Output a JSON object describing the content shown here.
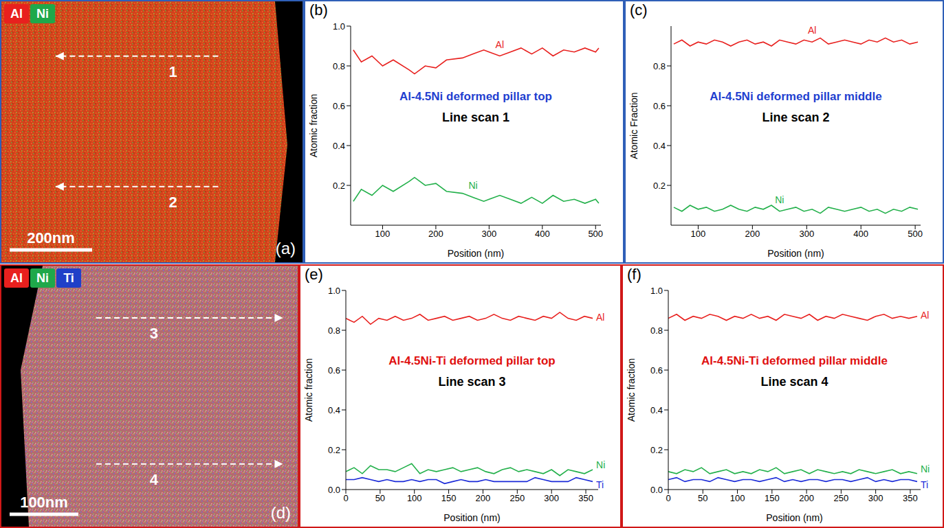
{
  "maps": [
    {
      "panel_label": "(a)",
      "elements": [
        "Al",
        "Ni"
      ],
      "scan_lines": [
        "1",
        "2"
      ],
      "scale_bar": "200nm"
    },
    {
      "panel_label": "(d)",
      "elements": [
        "Al",
        "Ni",
        "Ti"
      ],
      "scan_lines": [
        "3",
        "4"
      ],
      "scale_bar": "100nm"
    }
  ],
  "chart_data": [
    {
      "type": "line",
      "panel_label": "(b)",
      "title": "Al-4.5Ni deformed pillar top",
      "subtitle": "Line scan 1",
      "xlabel": "Position (nm)",
      "ylabel": "Atomic fraction",
      "x": [
        45,
        60,
        80,
        100,
        120,
        150,
        160,
        180,
        200,
        220,
        250,
        270,
        290,
        300,
        320,
        340,
        360,
        380,
        400,
        420,
        440,
        460,
        480,
        500,
        506
      ],
      "xlim": [
        40,
        510
      ],
      "xticks": [
        100,
        200,
        300,
        400,
        500
      ],
      "ylim": [
        0,
        1
      ],
      "yticks": [
        0.2,
        0.4,
        0.6,
        0.8,
        {
          "value": 1,
          "label": "1.0"
        }
      ],
      "series": [
        {
          "name": "Al",
          "color": "#e8201e",
          "values": [
            0.88,
            0.82,
            0.85,
            0.8,
            0.83,
            0.78,
            0.76,
            0.8,
            0.79,
            0.83,
            0.84,
            0.86,
            0.88,
            0.87,
            0.85,
            0.87,
            0.89,
            0.86,
            0.89,
            0.85,
            0.88,
            0.87,
            0.89,
            0.87,
            0.89
          ]
        },
        {
          "name": "Ni",
          "color": "#22b04a",
          "values": [
            0.12,
            0.18,
            0.15,
            0.2,
            0.17,
            0.22,
            0.24,
            0.2,
            0.21,
            0.17,
            0.16,
            0.14,
            0.12,
            0.13,
            0.15,
            0.13,
            0.11,
            0.14,
            0.11,
            0.15,
            0.12,
            0.13,
            0.11,
            0.13,
            0.11
          ]
        }
      ]
    },
    {
      "type": "line",
      "panel_label": "(c)",
      "title": "Al-4.5Ni deformed pillar middle",
      "subtitle": "Line scan 2",
      "xlabel": "Position (nm)",
      "ylabel": "Atomic Fraction",
      "x": [
        55,
        70,
        85,
        100,
        115,
        130,
        145,
        160,
        175,
        190,
        205,
        220,
        235,
        250,
        265,
        280,
        295,
        310,
        325,
        340,
        355,
        370,
        385,
        400,
        415,
        430,
        445,
        460,
        475,
        490,
        505
      ],
      "xlim": [
        50,
        510
      ],
      "xticks": [
        100,
        200,
        300,
        400,
        500
      ],
      "ylim": [
        0,
        1
      ],
      "yticks": [
        0.2,
        0.4,
        0.6,
        0.8
      ],
      "series": [
        {
          "name": "Al",
          "color": "#e8201e",
          "values": [
            0.91,
            0.93,
            0.9,
            0.92,
            0.91,
            0.93,
            0.92,
            0.9,
            0.92,
            0.93,
            0.91,
            0.92,
            0.9,
            0.93,
            0.92,
            0.91,
            0.93,
            0.92,
            0.94,
            0.91,
            0.92,
            0.93,
            0.92,
            0.91,
            0.93,
            0.92,
            0.94,
            0.92,
            0.93,
            0.91,
            0.92
          ]
        },
        {
          "name": "Ni",
          "color": "#22b04a",
          "values": [
            0.09,
            0.07,
            0.1,
            0.08,
            0.09,
            0.07,
            0.08,
            0.1,
            0.08,
            0.07,
            0.09,
            0.08,
            0.1,
            0.07,
            0.08,
            0.09,
            0.07,
            0.08,
            0.06,
            0.09,
            0.08,
            0.07,
            0.08,
            0.09,
            0.07,
            0.08,
            0.06,
            0.08,
            0.07,
            0.09,
            0.08
          ]
        }
      ]
    },
    {
      "type": "line",
      "panel_label": "(e)",
      "title": "Al-4.5Ni-Ti deformed pillar top",
      "subtitle": "Line scan 3",
      "xlabel": "Position (nm)",
      "ylabel": "Atomic fraction",
      "x": [
        0,
        12,
        24,
        36,
        48,
        60,
        72,
        84,
        96,
        108,
        120,
        132,
        144,
        156,
        168,
        180,
        192,
        204,
        216,
        228,
        240,
        252,
        264,
        276,
        288,
        300,
        312,
        324,
        336,
        348,
        360
      ],
      "xlim": [
        0,
        368
      ],
      "xticks": [
        0,
        50,
        100,
        150,
        200,
        250,
        300,
        350
      ],
      "ylim": [
        0,
        1
      ],
      "yticks": [
        {
          "value": 0,
          "label": "0.0"
        },
        0.2,
        0.4,
        0.6,
        0.8,
        {
          "value": 1,
          "label": "1.0"
        }
      ],
      "series": [
        {
          "name": "Al",
          "color": "#e8201e",
          "values": [
            0.86,
            0.84,
            0.87,
            0.83,
            0.86,
            0.85,
            0.87,
            0.85,
            0.86,
            0.88,
            0.85,
            0.86,
            0.87,
            0.85,
            0.86,
            0.87,
            0.85,
            0.86,
            0.88,
            0.86,
            0.85,
            0.87,
            0.86,
            0.85,
            0.87,
            0.86,
            0.89,
            0.86,
            0.85,
            0.87,
            0.86
          ]
        },
        {
          "name": "Ni",
          "color": "#22b04a",
          "values": [
            0.09,
            0.11,
            0.08,
            0.12,
            0.1,
            0.1,
            0.09,
            0.11,
            0.13,
            0.08,
            0.1,
            0.09,
            0.1,
            0.11,
            0.09,
            0.1,
            0.11,
            0.09,
            0.08,
            0.1,
            0.11,
            0.09,
            0.1,
            0.09,
            0.08,
            0.1,
            0.07,
            0.1,
            0.09,
            0.08,
            0.1
          ]
        },
        {
          "name": "Ti",
          "color": "#1a2ad8",
          "values": [
            0.05,
            0.05,
            0.06,
            0.05,
            0.04,
            0.05,
            0.04,
            0.04,
            0.05,
            0.04,
            0.05,
            0.05,
            0.03,
            0.04,
            0.05,
            0.04,
            0.04,
            0.05,
            0.04,
            0.04,
            0.04,
            0.04,
            0.04,
            0.06,
            0.05,
            0.04,
            0.04,
            0.04,
            0.06,
            0.05,
            0.04
          ]
        }
      ]
    },
    {
      "type": "line",
      "panel_label": "(f)",
      "title": "Al-4.5Ni-Ti deformed pillar middle",
      "subtitle": "Line scan 4",
      "xlabel": "Position (nm)",
      "ylabel": "Atomic fraction",
      "x": [
        0,
        12,
        24,
        36,
        48,
        60,
        72,
        84,
        96,
        108,
        120,
        132,
        144,
        156,
        168,
        180,
        192,
        204,
        216,
        228,
        240,
        252,
        264,
        276,
        288,
        300,
        312,
        324,
        336,
        348,
        360
      ],
      "xlim": [
        0,
        365
      ],
      "xticks": [
        0,
        50,
        100,
        150,
        200,
        250,
        300,
        350
      ],
      "ylim": [
        0,
        1
      ],
      "yticks": [
        {
          "value": 0,
          "label": "0.0"
        },
        0.2,
        0.4,
        0.6,
        0.8,
        {
          "value": 1,
          "label": "1.0"
        }
      ],
      "series": [
        {
          "name": "Al",
          "color": "#e8201e",
          "values": [
            0.86,
            0.88,
            0.85,
            0.87,
            0.86,
            0.88,
            0.87,
            0.85,
            0.87,
            0.86,
            0.88,
            0.86,
            0.87,
            0.85,
            0.88,
            0.87,
            0.86,
            0.88,
            0.85,
            0.87,
            0.86,
            0.88,
            0.87,
            0.86,
            0.85,
            0.87,
            0.88,
            0.86,
            0.87,
            0.86,
            0.87
          ]
        },
        {
          "name": "Ni",
          "color": "#22b04a",
          "values": [
            0.09,
            0.08,
            0.1,
            0.09,
            0.11,
            0.08,
            0.09,
            0.1,
            0.08,
            0.09,
            0.08,
            0.1,
            0.09,
            0.11,
            0.08,
            0.09,
            0.1,
            0.08,
            0.1,
            0.09,
            0.08,
            0.09,
            0.08,
            0.1,
            0.09,
            0.08,
            0.09,
            0.1,
            0.08,
            0.09,
            0.08
          ]
        },
        {
          "name": "Ti",
          "color": "#1a2ad8",
          "values": [
            0.05,
            0.06,
            0.04,
            0.05,
            0.05,
            0.04,
            0.06,
            0.05,
            0.04,
            0.05,
            0.05,
            0.04,
            0.05,
            0.06,
            0.04,
            0.05,
            0.04,
            0.05,
            0.05,
            0.04,
            0.05,
            0.05,
            0.04,
            0.05,
            0.06,
            0.04,
            0.05,
            0.04,
            0.05,
            0.05,
            0.04
          ]
        }
      ]
    }
  ]
}
